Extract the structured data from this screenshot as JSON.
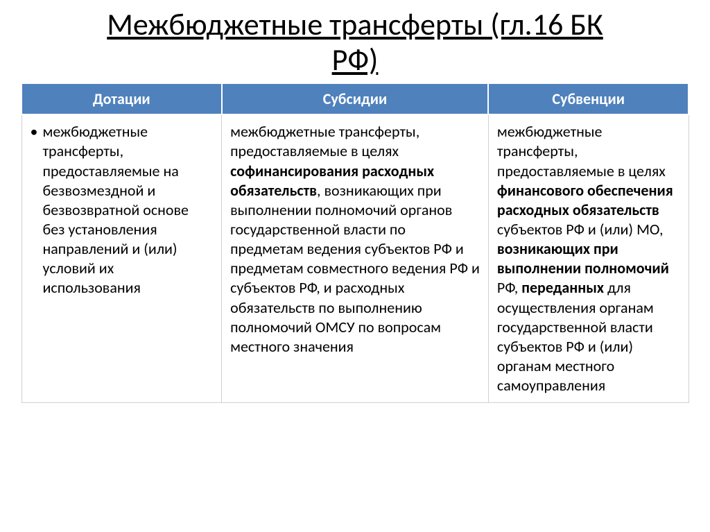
{
  "title_line1": "Межбюджетные трансферты (гл.16 БК",
  "title_line2": "РФ)",
  "table": {
    "header_bg": "#4f81bd",
    "header_fg": "#ffffff",
    "border_color": "#d0d0d0",
    "font_size_header": 22,
    "font_size_body": 22,
    "columns": [
      {
        "label": "Дотации",
        "width_pct": 30
      },
      {
        "label": "Субсидии",
        "width_pct": 40
      },
      {
        "label": "Субвенции",
        "width_pct": 30
      }
    ],
    "cells": {
      "c0": {
        "bullet": "•",
        "p1": "межбюджетные трансферты, предоставляемые на безвозмездной и безвозвратной основе без установления направлений и (или) условий их использования"
      },
      "c1": {
        "p1a": "межбюджетные трансферты, предоставляемые в целях ",
        "p1b": "софинансирования расходных обязательств",
        "p1c": ", возникающих при выполнении полномочий органов государственной власти по предметам ведения субъектов РФ и предметам совместного ведения РФ и субъектов РФ, и расходных обязательств по выполнению полномочий ОМСУ по вопросам местного значения"
      },
      "c2": {
        "p1a": "межбюджетные трансферты, предоставляемые в целях ",
        "p1b": "финансового обеспечения расходных обязательств",
        "p1c": " субъектов РФ и (или) МО, ",
        "p1d": "возникающих при выполнении полномочий",
        "p1e": " РФ, ",
        "p1f": "переданных",
        "p1g": " для осуществления органам государственной власти субъектов РФ и (или) органам местного самоуправления"
      }
    }
  }
}
